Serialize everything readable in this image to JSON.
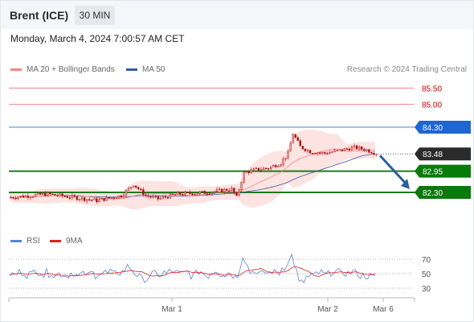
{
  "header": {
    "instrument": "Brent (ICE)",
    "timeframe": "30 MIN"
  },
  "datetime": "Monday, March 4, 2024 7:00:57 AM CET",
  "legend": {
    "ma20_bb": {
      "label": "MA 20 + Bollinger Bands",
      "color": "#f4847f"
    },
    "ma50": {
      "label": "MA 50",
      "color": "#2f5ea8"
    }
  },
  "credit": "Research © 2024 Trading Central",
  "rsi_legend": {
    "rsi": {
      "label": "RSI",
      "color": "#5b82d9"
    },
    "ma9": {
      "label": "9MA",
      "color": "#e02020"
    }
  },
  "colors": {
    "resistance": "#f08080",
    "resistance_text": "#cc0000",
    "pivot_line": "#4f7fd8",
    "pivot_tag": "#1f66d1",
    "support": "#1f7a1f",
    "support_tag": "#0a7a0a",
    "last_tag": "#2b2b2b",
    "arrow": "#2e5e9e",
    "bb_fill": "#fde3e1",
    "candle_up": "#e8a09a",
    "candle_down": "#b01010"
  },
  "chart_data": {
    "type": "candlestick",
    "price_axis": {
      "min": 81.6,
      "max": 85.8
    },
    "levels": [
      {
        "label": "85.50",
        "value": 85.5,
        "kind": "resistance"
      },
      {
        "label": "85.00",
        "value": 85.0,
        "kind": "resistance"
      },
      {
        "label": "84.30",
        "value": 84.3,
        "kind": "pivot"
      },
      {
        "label": "83.48",
        "value": 83.48,
        "kind": "last"
      },
      {
        "label": "82.95",
        "value": 82.95,
        "kind": "support"
      },
      {
        "label": "82.30",
        "value": 82.3,
        "kind": "support"
      }
    ],
    "forecast_target": 82.3,
    "x_labels": [
      "Mar 1",
      "Mar 2",
      "Mar 6"
    ],
    "rsi_axis": {
      "min": 20,
      "max": 85,
      "ticks": [
        "70",
        "50",
        "30"
      ]
    }
  }
}
